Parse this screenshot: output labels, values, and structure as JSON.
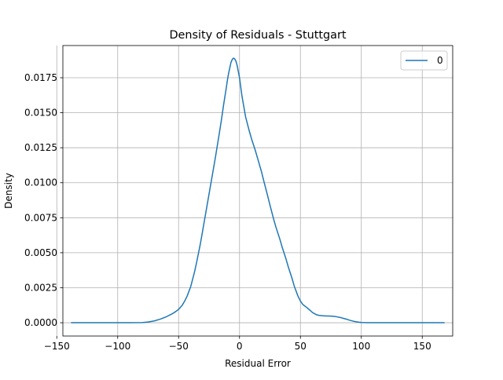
{
  "chart_data": {
    "type": "line",
    "title": "Density of Residuals - Stuttgart",
    "xlabel": "Residual Error",
    "ylabel": "Density",
    "xlim": [
      -145,
      175
    ],
    "ylim": [
      -0.00095,
      0.0198
    ],
    "xticks": [
      -150,
      -100,
      -50,
      0,
      50,
      100,
      150
    ],
    "xtick_labels": [
      "−150",
      "−100",
      "−50",
      "0",
      "50",
      "100",
      "150"
    ],
    "yticks": [
      0.0,
      0.0025,
      0.005,
      0.0075,
      0.01,
      0.0125,
      0.015,
      0.0175
    ],
    "ytick_labels": [
      "0.0000",
      "0.0025",
      "0.0050",
      "0.0075",
      "0.0100",
      "0.0125",
      "0.0150",
      "0.0175"
    ],
    "grid": true,
    "legend_position": "top-right",
    "series": [
      {
        "name": "0",
        "color": "#1f77b4",
        "x": [
          -138,
          -120,
          -100,
          -90,
          -80,
          -75,
          -70,
          -65,
          -60,
          -55,
          -52,
          -50,
          -47,
          -45,
          -43,
          -40,
          -37,
          -35,
          -32,
          -30,
          -27,
          -25,
          -22,
          -20,
          -17,
          -15,
          -13,
          -11,
          -10,
          -9,
          -8,
          -7,
          -6,
          -5,
          -4,
          -3,
          -2,
          0,
          2,
          5,
          8,
          10,
          13,
          15,
          18,
          20,
          23,
          25,
          28,
          30,
          33,
          35,
          38,
          40,
          43,
          45,
          48,
          50,
          52,
          55,
          58,
          60,
          63,
          65,
          68,
          70,
          73,
          75,
          78,
          80,
          83,
          85,
          88,
          90,
          93,
          95,
          98,
          100,
          103,
          105,
          110,
          115,
          120,
          130,
          140,
          150,
          160,
          168
        ],
        "y": [
          0.0,
          0.0,
          0.0,
          0.0,
          1e-05,
          5e-05,
          0.00013,
          0.00026,
          0.00043,
          0.00065,
          0.00082,
          0.00096,
          0.00125,
          0.00155,
          0.0019,
          0.0026,
          0.0036,
          0.0044,
          0.0057,
          0.0067,
          0.0082,
          0.0092,
          0.0107,
          0.0117,
          0.0133,
          0.0144,
          0.0156,
          0.0167,
          0.0173,
          0.0178,
          0.0182,
          0.0186,
          0.0188,
          0.0189,
          0.01885,
          0.0187,
          0.0184,
          0.0175,
          0.0162,
          0.0147,
          0.0137,
          0.0131,
          0.0123,
          0.0117,
          0.0108,
          0.0101,
          0.0091,
          0.0084,
          0.0074,
          0.0068,
          0.006,
          0.0054,
          0.0046,
          0.004,
          0.0032,
          0.0026,
          0.0019,
          0.00155,
          0.0013,
          0.0011,
          0.00088,
          0.00072,
          0.00058,
          0.00053,
          0.0005,
          0.00049,
          0.00048,
          0.00047,
          0.00045,
          0.00042,
          0.00037,
          0.00032,
          0.00025,
          0.00019,
          0.00012,
          8e-05,
          4e-05,
          2e-05,
          1e-05,
          0.0,
          0.0,
          0.0,
          0.0,
          0.0,
          0.0,
          0.0,
          0.0,
          0.0
        ]
      }
    ]
  }
}
